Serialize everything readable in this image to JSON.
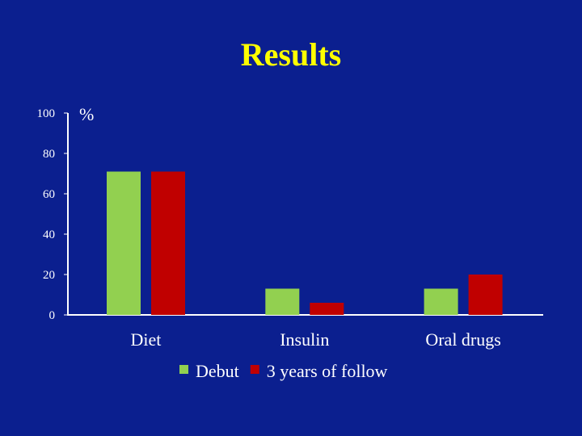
{
  "slide": {
    "title": "Results"
  },
  "chart_data": {
    "type": "bar",
    "title": "Results",
    "ylabel": "%",
    "xlabel": "",
    "ylim": [
      0,
      100
    ],
    "yticks": [
      0,
      20,
      40,
      60,
      80,
      100
    ],
    "grid": false,
    "legend_position": "bottom",
    "categories": [
      "Diet",
      "Insulin",
      "Oral drugs"
    ],
    "series": [
      {
        "name": "Debut",
        "color": "#92d050",
        "values": [
          71,
          13,
          13
        ]
      },
      {
        "name": "3 years of follow",
        "color": "#c00000",
        "values": [
          71,
          6,
          20
        ]
      }
    ],
    "colors": {
      "background": "#0b1f8f",
      "title": "#ffff00",
      "text": "#ffffff",
      "axis": "#ffffff"
    }
  }
}
